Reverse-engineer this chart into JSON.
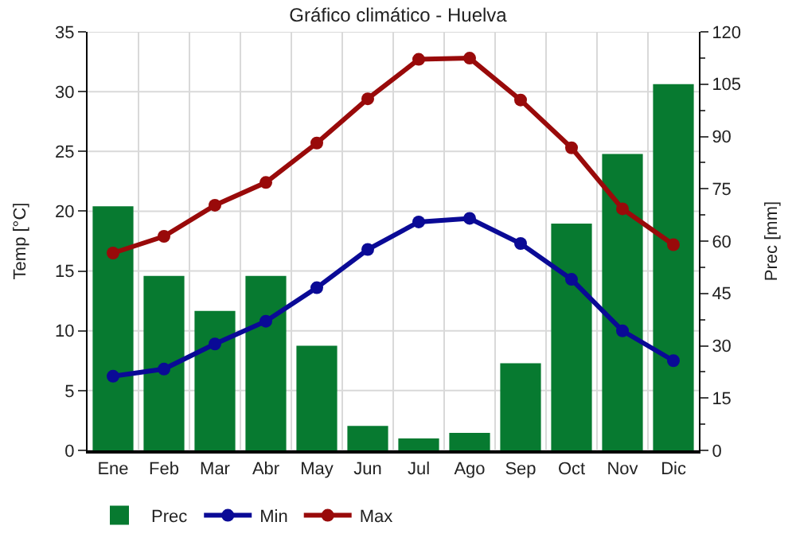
{
  "chart_data": {
    "type": "line",
    "title": "Gráfico climático - Huelva",
    "ylabel": "Temp [°C]",
    "y2label": "Prec [mm]",
    "categories": [
      "Ene",
      "Feb",
      "Mar",
      "Abr",
      "May",
      "Jun",
      "Jul",
      "Ago",
      "Sep",
      "Oct",
      "Nov",
      "Dic"
    ],
    "series": [
      {
        "name": "Prec",
        "type": "bar",
        "axis": "y2",
        "color": "#077a30",
        "values": [
          70,
          50,
          40,
          50,
          30,
          7,
          3.4,
          5,
          25,
          65,
          85,
          105
        ]
      },
      {
        "name": "Min",
        "color": "#0a0a96",
        "values": [
          6.2,
          6.8,
          8.9,
          10.8,
          13.6,
          16.8,
          19.1,
          19.4,
          17.3,
          14.3,
          10.0,
          7.5
        ]
      },
      {
        "name": "Max",
        "color": "#990a0a",
        "values": [
          16.5,
          17.9,
          20.5,
          22.4,
          25.7,
          29.4,
          32.7,
          32.8,
          29.3,
          25.3,
          20.2,
          17.2
        ]
      }
    ],
    "ylim": [
      0,
      35
    ],
    "yticks": [
      0,
      5,
      10,
      15,
      20,
      25,
      30,
      35
    ],
    "y2lim": [
      0,
      120
    ],
    "y2ticks": [
      0,
      15,
      30,
      45,
      60,
      75,
      90,
      105,
      120
    ],
    "grid": true,
    "legend": "bottom left",
    "marker": "circle"
  }
}
